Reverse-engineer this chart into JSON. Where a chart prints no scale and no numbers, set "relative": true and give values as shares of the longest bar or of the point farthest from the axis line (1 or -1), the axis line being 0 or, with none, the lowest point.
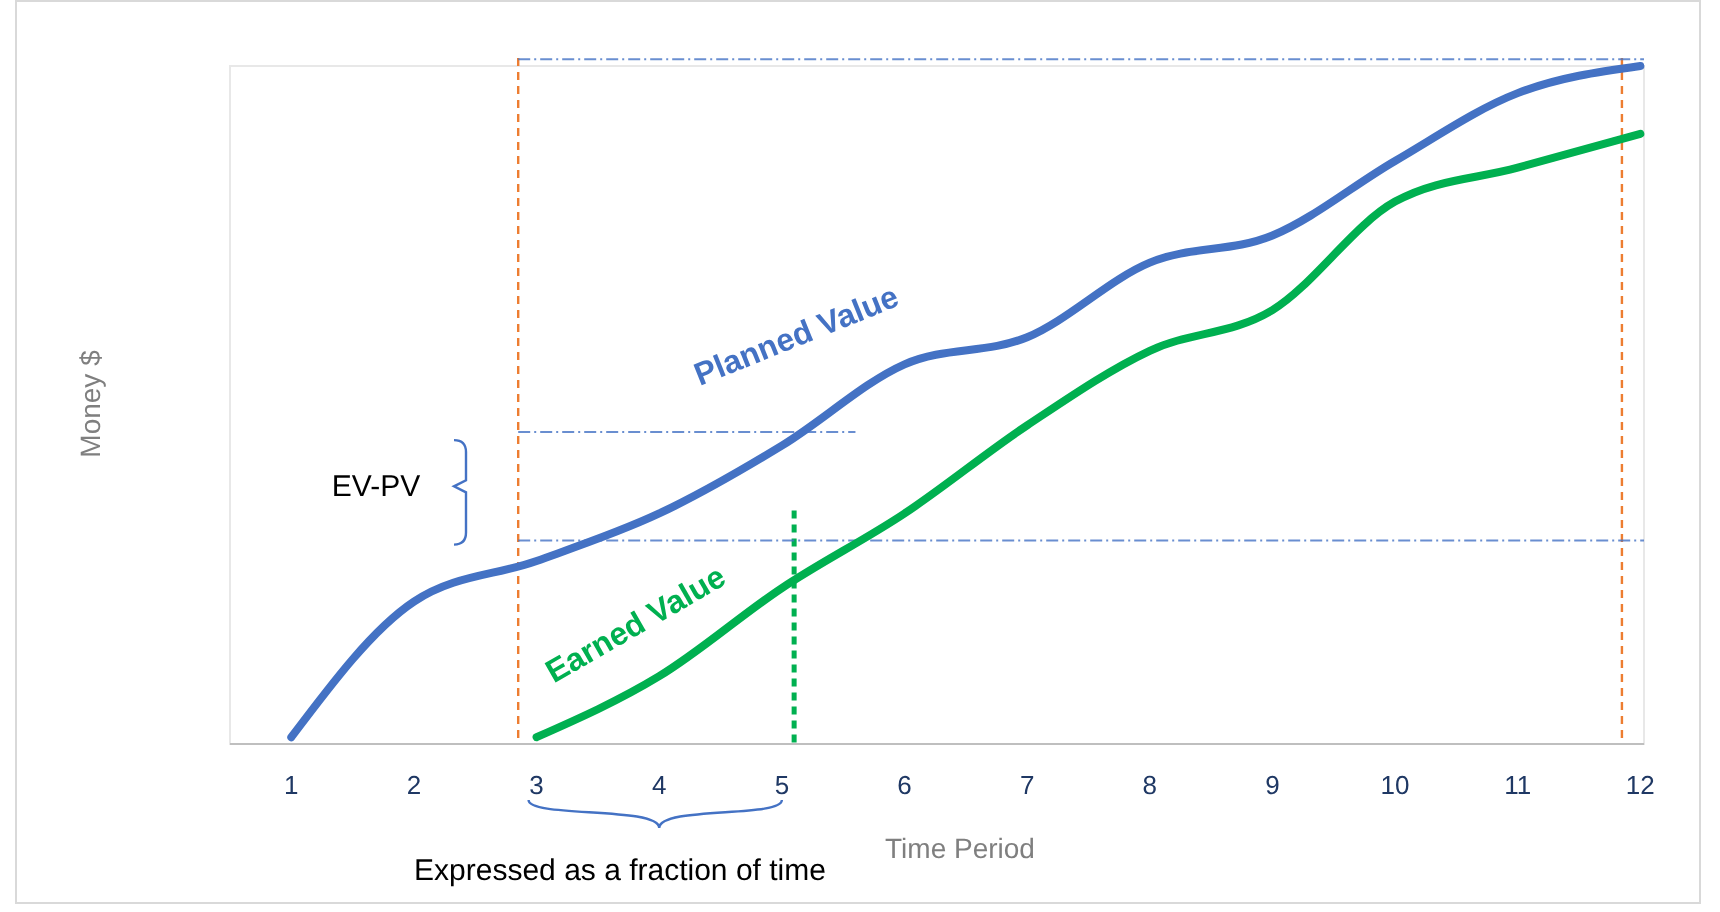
{
  "chart_data": {
    "type": "line",
    "relative": true,
    "xlabel": "Time Period",
    "ylabel": "Money $",
    "x": [
      1,
      2,
      3,
      4,
      5,
      6,
      7,
      8,
      9,
      10,
      11,
      12
    ],
    "xlim": [
      0.5,
      12.03
    ],
    "xticks": [
      1,
      2,
      3,
      4,
      5,
      6,
      7,
      8,
      9,
      10,
      11,
      12
    ],
    "series": [
      {
        "name": "Planned Value",
        "color": "#4472c4",
        "values": [
          0.01,
          0.21,
          0.27,
          0.34,
          0.44,
          0.56,
          0.6,
          0.71,
          0.75,
          0.86,
          0.96,
          1
        ]
      },
      {
        "name": "Earned Value",
        "color": "#00b050",
        "values": [
          null,
          null,
          0.01,
          0.1,
          0.23,
          0.34,
          0.47,
          0.58,
          0.64,
          0.8,
          0.85,
          0.9
        ]
      }
    ],
    "ref_lines": [
      {
        "axis": "x",
        "value": 2.85,
        "color": "#ed7d31",
        "line_style": "dashed"
      },
      {
        "axis": "x",
        "value": 11.85,
        "color": "#ed7d31",
        "line_style": "dashed"
      },
      {
        "axis": "x",
        "value": 5.1,
        "color": "#00b050",
        "line_style": "dashed"
      },
      {
        "axis": "y",
        "value": 1.01,
        "color": "#4472c4",
        "line_style": "dashed"
      },
      {
        "axis": "y",
        "value": 0.46,
        "color": "#4472c4",
        "line_style": "dashed"
      },
      {
        "axis": "y",
        "value": 0.3,
        "color": "#4472c4",
        "line_style": "dashed"
      }
    ],
    "annotations": [
      "EV-PV",
      "Expressed as a fraction of time"
    ],
    "grid": false,
    "legend": false,
    "marker": "none",
    "line_style": "solid"
  }
}
